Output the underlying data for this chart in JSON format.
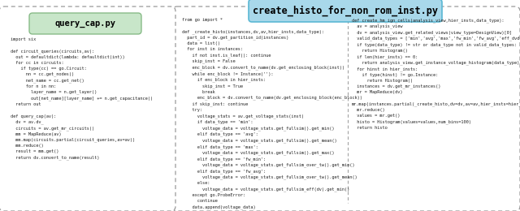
{
  "title": "create_histo_for_non_rom_inst.py",
  "title_bg": "#a8d8ea",
  "title_border": "#5bb8d4",
  "title_font_size": 8.5,
  "box1_title": "query_cap.py",
  "box1_title_bg": "#c8e6c9",
  "box1_title_border": "#88bb88",
  "outer_border_color": "#999999",
  "bg_color": "#ffffff",
  "code_font_size": 3.8,
  "box1_code": "import six\n\ndef circuit_queries(circuits,av):\n  out = defaultdict(lambda: defaultdict(int))\n  for cc in circuits:\n    if type(cc) == go.Circuit:\n      nn = cc.get_nodes()\n      net_name = cc.get_net()\n      for n in nn:\n        layer_name = n.get_layer()\n        out[net_name][layer_name] += n.get_capacitance()\n  return out\n\ndef query_cap(av):\n  dv = av.dv_\n  circuits = av.get_mr_circuits()\n  mm = MapReduce(av)\n  mm.map(circuits.partial(circuit_queries,av=av))\n  mm.reduce()\n  result = mm.get()\n  return dv.convert_to_name(result)",
  "box2_left_code": "from go import *\n\ndef _create_histo(instances,dv,av,hier_insts,data_type):\n  part_id = dv.get_partition_id(instances)\n  data = list()\n  for inst in instances:\n    if not inst.is_leaf(): continue\n    skip_inst = False\n    enc_block = dv.convert_to_name(dv.get_enclosing_block(inst))\n    while enc_block != Instance(''):\n      if enc_block in hier_insts:\n        skip_inst = True\n        break\n      enc_block = dv.convert_to_name(dv.get_enclosing_block(enc_block))\n    if skip_inst: continue\n    try:\n      voltage_stats = av.get_voltage_stats(inst)\n      if data_type == 'min':\n        voltage_data = voltage_stats.get_fullsim().get_min()\n      elif data_type == 'avg':\n        voltage_data = voltage_stats.get_fullsim().get_mean()\n      elif data_type == 'max':\n        voltage_data = voltage_stats.get_fullsim().get_max()\n      elif data_type == 'fw_min':\n        voltage_data = voltage_stats.get_fullsim_over_tw().get_min()\n      elif data_type == 'fw_avg':\n        voltage_data = voltage_stats.get_fullsim_over_tw().get_mean()\n      else:\n        voltage_data = voltage_stats.get_fullsim_eff(dv).get_min()\n    except go.ProbeError:\n      continue\n    data.append(voltage_data)\n  return data",
  "box2_right_code": "def create_hm_ign_cells(analysis_view,hier_insts,data_type):\n  av = analysis_view\n  dv = analysis_view.get_related_views(view_type=DesignView)[0]\n  valid_data_types = ['min','avg','max','fw_min','fw_avg','eff_dvd']\n  if type(data_type) != str or data_type not in valid_data_types:\n    return Histogram()\n  if len(hier_insts) == 0:\n    return analysis_view.get_instance_voltage_histogram(data_type)\n  for hinst in hier_insts:\n    if type(hinst) != go.Instance:\n      return Histogram()\n  instances = dv.get_mr_instances()\n  mr = MapReduce(dv)\n\nmr.map(instances.partial(_create_histo,dv=dv,av=av,hier_insts=hier_insts,data_type=data_type))\n  mr.reduce()\n  values = mr.get()\n  histo = Histogram(values=values,num_bins=100)\n  return histo"
}
